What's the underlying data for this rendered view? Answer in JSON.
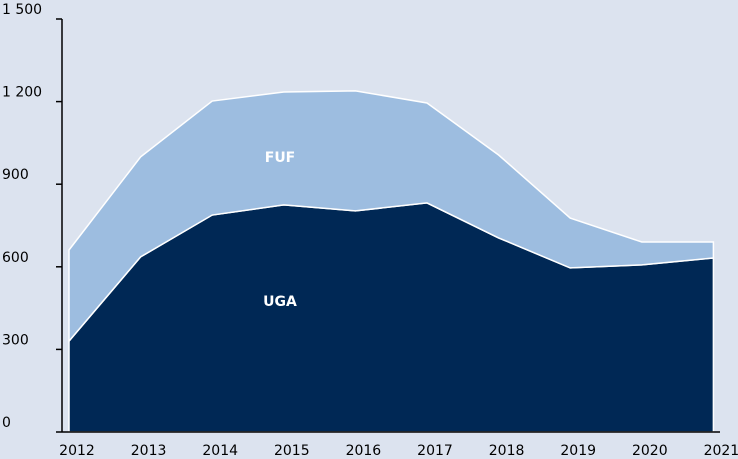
{
  "chart_data": {
    "type": "stacked_area",
    "categories": [
      "2012",
      "2013",
      "2014",
      "2015",
      "2016",
      "2017",
      "2018",
      "2019",
      "2020",
      "2021"
    ],
    "series": [
      {
        "name": "UGA",
        "color": "#002855",
        "values": [
          330,
          636,
          788,
          825,
          803,
          832,
          705,
          596,
          607,
          632
        ]
      },
      {
        "name": "FUF",
        "color": "#9dbde0",
        "values": [
          331,
          363,
          414,
          410,
          436,
          363,
          301,
          181,
          83,
          58
        ]
      }
    ],
    "ylim": [
      0,
      1500
    ],
    "yticks": [
      0,
      300,
      600,
      900,
      {
        "value": 1200,
        "label": "1 200"
      },
      {
        "value": 1500,
        "label": "1 500"
      }
    ]
  }
}
